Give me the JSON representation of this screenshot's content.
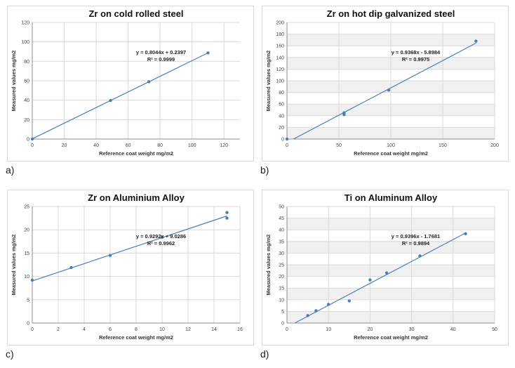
{
  "chart_data": [
    {
      "type": "scatter",
      "panel_label": "a)",
      "title": "Zr on cold rolled steel",
      "xlabel": "Reference coat weight mg/m2",
      "ylabel": "Measured values mg/m2",
      "xlim": [
        0,
        130
      ],
      "ylim": [
        0,
        120
      ],
      "xticks": [
        0,
        20,
        40,
        60,
        80,
        100,
        120
      ],
      "yticks": [
        0,
        20,
        40,
        60,
        80,
        100,
        120
      ],
      "equation": "y = 0.8044x + 0.2397",
      "r2": "R² = 0.9999",
      "trendline": {
        "slope": 0.8044,
        "intercept": 0.2397
      },
      "x": [
        0,
        49,
        73,
        110
      ],
      "y": [
        0,
        39.7,
        59,
        88.7
      ],
      "grid": true,
      "grid_shading": false
    },
    {
      "type": "scatter",
      "panel_label": "b)",
      "title": "Zr on hot dip galvanized steel",
      "xlabel": "Reference coat weight mg/m2",
      "ylabel": "Measured values mg/m2",
      "xlim": [
        0,
        200
      ],
      "ylim": [
        0,
        200
      ],
      "xticks": [
        0,
        50,
        100,
        150,
        200
      ],
      "yticks": [
        0,
        20,
        40,
        60,
        80,
        100,
        120,
        140,
        160,
        180,
        200
      ],
      "equation": "y = 0.9368x - 5.8984",
      "r2": "R² = 0.9975",
      "trendline": {
        "slope": 0.9368,
        "intercept": -5.8984
      },
      "x": [
        0,
        55,
        55,
        98,
        182
      ],
      "y": [
        0,
        42,
        45,
        84,
        168
      ],
      "grid": true,
      "grid_shading": true
    },
    {
      "type": "scatter",
      "panel_label": "c)",
      "title": "Zr on Aluminium Alloy",
      "xlabel": "Reference coat weight mg/m2",
      "ylabel": "Measured values mg/m2",
      "xlim": [
        0,
        16
      ],
      "ylim": [
        0,
        25
      ],
      "xticks": [
        0,
        2,
        4,
        6,
        8,
        10,
        12,
        14,
        16
      ],
      "yticks": [
        0,
        5,
        10,
        15,
        20,
        25
      ],
      "equation": "y = 0.9292x + 9.0286",
      "r2": "R² = 0.9962",
      "trendline": {
        "slope": 0.9292,
        "intercept": 9.0286
      },
      "x": [
        0,
        3,
        6,
        10,
        15,
        15
      ],
      "y": [
        9.2,
        11.9,
        14.5,
        18.4,
        23.7,
        22.5
      ],
      "grid": true,
      "grid_shading": false
    },
    {
      "type": "scatter",
      "panel_label": "d)",
      "title": "Ti on Aluminum Alloy",
      "xlabel": "Reference coat weight mg/m2",
      "ylabel": "Measured values mg/m2",
      "xlim": [
        0,
        50
      ],
      "ylim": [
        0,
        50
      ],
      "xticks": [
        0,
        10,
        20,
        30,
        40,
        50
      ],
      "yticks": [
        0,
        5,
        10,
        15,
        20,
        25,
        30,
        35,
        40,
        45,
        50
      ],
      "equation": "y = 0.9396x - 1.7681",
      "r2": "R² = 0.9894",
      "trendline": {
        "slope": 0.9396,
        "intercept": -1.7681
      },
      "x": [
        5,
        7,
        10,
        15,
        20,
        24,
        32,
        43
      ],
      "y": [
        3.2,
        5.3,
        8,
        9.5,
        18.5,
        21.5,
        28.8,
        38.3
      ],
      "grid": true,
      "grid_shading": true
    }
  ]
}
